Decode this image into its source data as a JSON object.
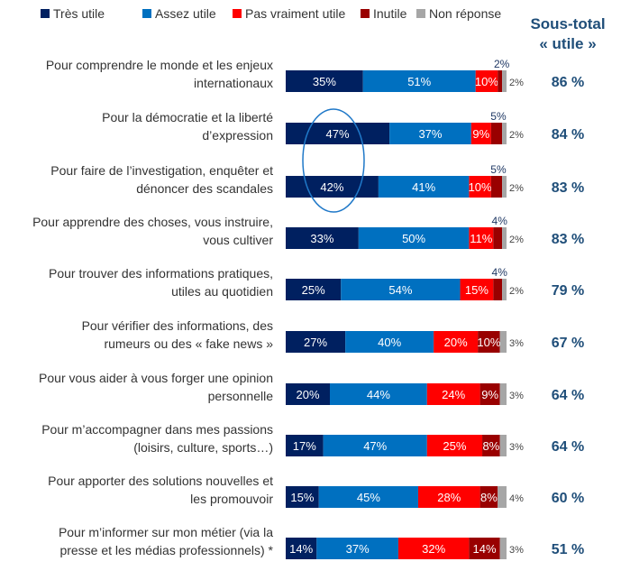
{
  "chart_data": {
    "type": "bar",
    "orientation": "horizontal",
    "stacked": true,
    "legend_position": "top",
    "subtotal_header": "Sous-total",
    "subtotal_header_2": "« utile »",
    "series": [
      {
        "name": "Très utile",
        "color": "#002060",
        "values": [
          35,
          47,
          42,
          33,
          25,
          27,
          20,
          17,
          15,
          14
        ]
      },
      {
        "name": "Assez utile",
        "color": "#0070C0",
        "values": [
          51,
          37,
          41,
          50,
          54,
          40,
          44,
          47,
          45,
          37
        ]
      },
      {
        "name": "Pas vraiment utile",
        "color": "#FF0000",
        "values": [
          10,
          9,
          10,
          11,
          15,
          20,
          24,
          25,
          28,
          32
        ]
      },
      {
        "name": "Inutile",
        "color": "#990000",
        "values": [
          2,
          5,
          5,
          4,
          4,
          10,
          9,
          8,
          8,
          14
        ]
      },
      {
        "name": "Non réponse",
        "color": "#A6A6A6",
        "values": [
          2,
          2,
          2,
          2,
          2,
          3,
          3,
          3,
          4,
          3
        ]
      }
    ],
    "categories": [
      [
        "Pour comprendre le monde et les enjeux",
        "internationaux"
      ],
      [
        "Pour la démocratie et la liberté",
        "d’expression"
      ],
      [
        "Pour faire de l’investigation, enquêter et",
        "dénoncer des scandales"
      ],
      [
        "Pour apprendre des choses, vous instruire,",
        "vous cultiver"
      ],
      [
        "Pour trouver des informations pratiques,",
        "utiles au quotidien"
      ],
      [
        "Pour vérifier des informations, des",
        "rumeurs ou des « fake news »"
      ],
      [
        "Pour vous aider à vous forger une opinion",
        "personnelle"
      ],
      [
        "Pour m’accompagner dans mes passions",
        "(loisirs, culture, sports…)"
      ],
      [
        "Pour apporter des solutions nouvelles et",
        "les promouvoir"
      ],
      [
        "Pour m’informer sur mon métier (via la",
        "presse et les médias professionnels) *"
      ]
    ],
    "subtotals": [
      "86 %",
      "84 %",
      "83 %",
      "83 %",
      "79 %",
      "67 %",
      "64 %",
      "64 %",
      "60 %",
      "51 %"
    ],
    "highlight": "ellipse around Très utile values of rows 2-3",
    "accent_color": "#1F4E79"
  }
}
